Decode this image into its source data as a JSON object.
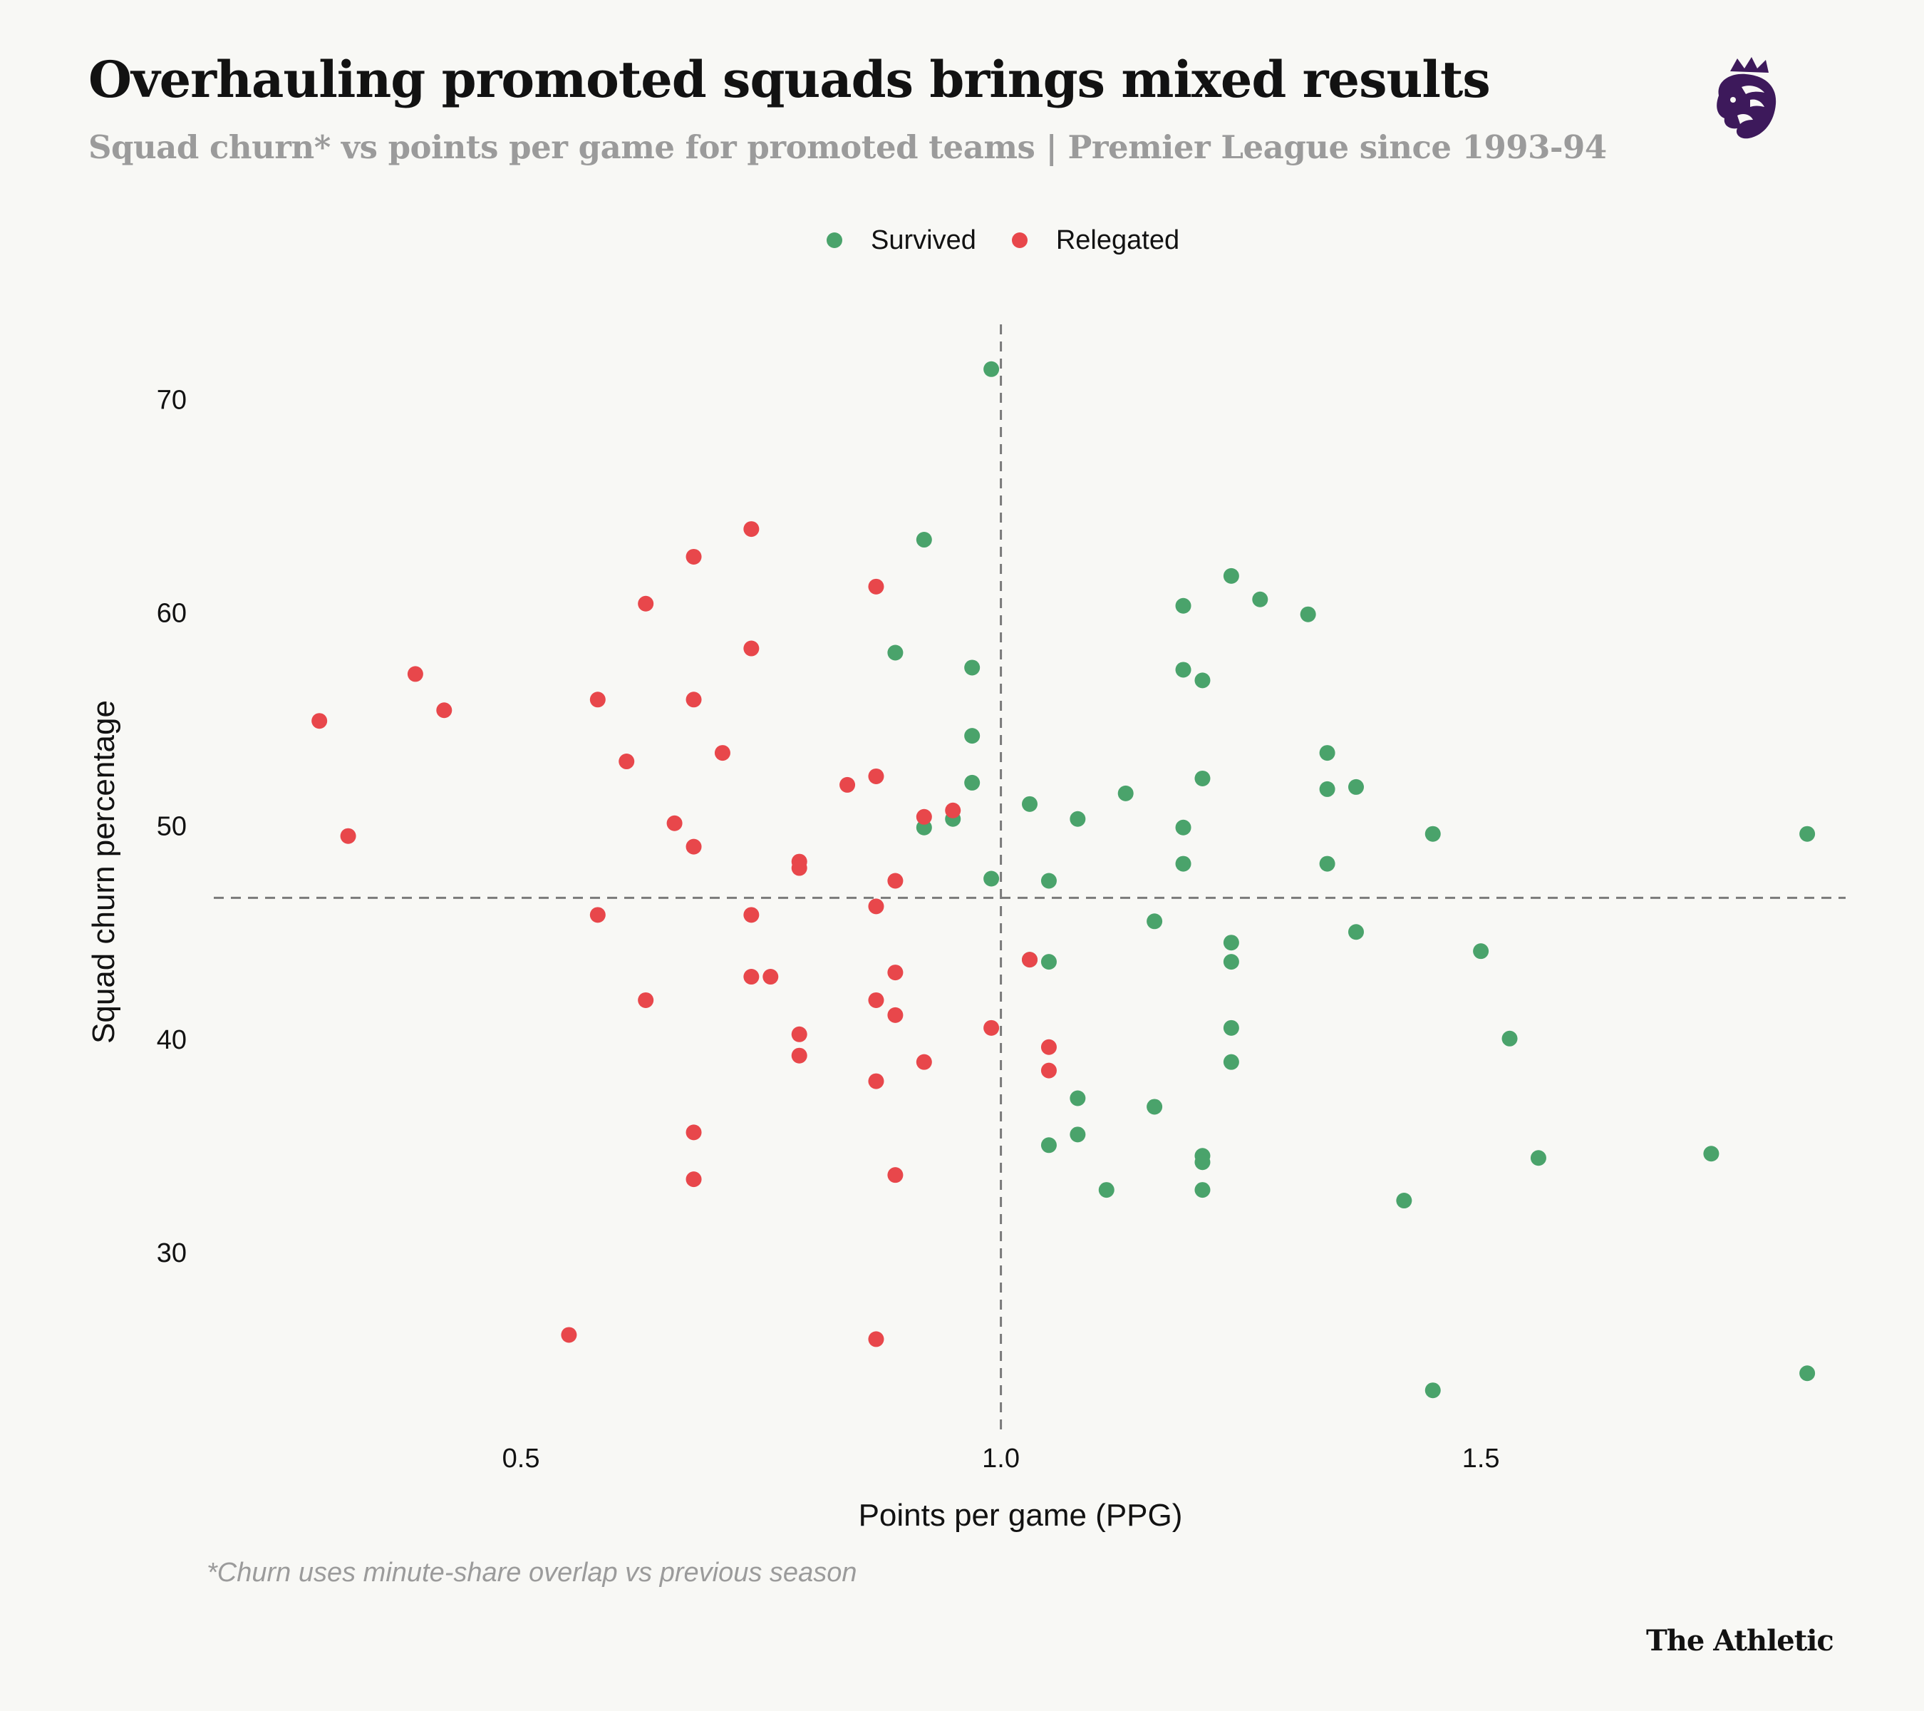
{
  "header": {
    "title": "Overhauling promoted squads brings mixed results",
    "subtitle": "Squad churn* vs points per game for promoted teams | Premier League since 1993-94"
  },
  "logo": {
    "icon": "premier-league-lion-icon",
    "color": "#3d195b"
  },
  "footnote": "*Churn uses minute-share overlap vs previous season",
  "brand": "The Athletic",
  "colors": {
    "survived": "#4aa36b",
    "relegated": "#e8474b",
    "reference": "#7a7a7a"
  },
  "chart_data": {
    "type": "scatter",
    "title": "Overhauling promoted squads brings mixed results",
    "xlabel": "Points per game (PPG)",
    "ylabel": "Squad churn percentage",
    "xlim": [
      0.18,
      1.88
    ],
    "ylim": [
      21.5,
      73.5
    ],
    "xticks": [
      0.5,
      1.0,
      1.5
    ],
    "xtick_labels": [
      "0.5",
      "1.0",
      "1.5"
    ],
    "yticks": [
      30,
      40,
      50,
      60,
      70
    ],
    "ytick_labels": [
      "30",
      "40",
      "50",
      "60",
      "70"
    ],
    "grid": false,
    "legend_position": "top-center",
    "reference_lines": {
      "x": 1.0,
      "y": 46.6
    },
    "series": [
      {
        "name": "Survived",
        "points": [
          [
            0.99,
            71.4
          ],
          [
            0.92,
            63.4
          ],
          [
            1.24,
            61.7
          ],
          [
            1.19,
            60.3
          ],
          [
            1.27,
            60.6
          ],
          [
            1.32,
            59.9
          ],
          [
            0.89,
            58.1
          ],
          [
            0.97,
            57.4
          ],
          [
            1.19,
            57.3
          ],
          [
            1.21,
            56.8
          ],
          [
            0.97,
            54.2
          ],
          [
            1.34,
            53.4
          ],
          [
            0.97,
            52.0
          ],
          [
            1.21,
            52.2
          ],
          [
            1.34,
            51.7
          ],
          [
            1.37,
            51.8
          ],
          [
            1.13,
            51.5
          ],
          [
            1.03,
            51.0
          ],
          [
            1.08,
            50.3
          ],
          [
            0.95,
            50.3
          ],
          [
            0.92,
            49.9
          ],
          [
            1.19,
            49.9
          ],
          [
            1.45,
            49.6
          ],
          [
            1.84,
            49.6
          ],
          [
            1.19,
            48.2
          ],
          [
            1.34,
            48.2
          ],
          [
            0.99,
            47.5
          ],
          [
            1.05,
            47.4
          ],
          [
            1.16,
            45.5
          ],
          [
            1.37,
            45.0
          ],
          [
            1.24,
            44.5
          ],
          [
            1.5,
            44.1
          ],
          [
            1.03,
            43.7
          ],
          [
            1.05,
            43.6
          ],
          [
            1.24,
            43.6
          ],
          [
            1.24,
            40.5
          ],
          [
            1.53,
            40.0
          ],
          [
            1.24,
            38.9
          ],
          [
            1.08,
            37.2
          ],
          [
            1.16,
            36.8
          ],
          [
            1.08,
            35.5
          ],
          [
            1.05,
            35.0
          ],
          [
            1.21,
            34.5
          ],
          [
            1.21,
            34.2
          ],
          [
            1.56,
            34.4
          ],
          [
            1.74,
            34.6
          ],
          [
            1.11,
            32.9
          ],
          [
            1.21,
            32.9
          ],
          [
            1.42,
            32.4
          ],
          [
            1.84,
            24.3
          ],
          [
            1.45,
            23.5
          ]
        ]
      },
      {
        "name": "Relegated",
        "points": [
          [
            0.74,
            63.9
          ],
          [
            0.68,
            62.6
          ],
          [
            0.87,
            61.2
          ],
          [
            0.63,
            60.4
          ],
          [
            0.74,
            58.3
          ],
          [
            0.39,
            57.1
          ],
          [
            0.58,
            55.9
          ],
          [
            0.68,
            55.9
          ],
          [
            0.42,
            55.4
          ],
          [
            0.29,
            54.9
          ],
          [
            0.71,
            53.4
          ],
          [
            0.61,
            53.0
          ],
          [
            0.87,
            52.3
          ],
          [
            0.84,
            51.9
          ],
          [
            0.95,
            50.7
          ],
          [
            0.92,
            50.4
          ],
          [
            0.66,
            50.1
          ],
          [
            0.32,
            49.5
          ],
          [
            0.68,
            49.0
          ],
          [
            0.79,
            48.3
          ],
          [
            0.79,
            48.0
          ],
          [
            0.89,
            47.4
          ],
          [
            0.87,
            46.2
          ],
          [
            0.58,
            45.8
          ],
          [
            0.74,
            45.8
          ],
          [
            0.74,
            42.9
          ],
          [
            0.76,
            42.9
          ],
          [
            0.89,
            43.1
          ],
          [
            1.03,
            43.7
          ],
          [
            0.63,
            41.8
          ],
          [
            0.87,
            41.8
          ],
          [
            0.89,
            41.1
          ],
          [
            0.79,
            40.2
          ],
          [
            0.99,
            40.5
          ],
          [
            1.05,
            39.6
          ],
          [
            0.79,
            39.2
          ],
          [
            0.92,
            38.9
          ],
          [
            1.05,
            38.5
          ],
          [
            0.87,
            38.0
          ],
          [
            0.68,
            35.6
          ],
          [
            0.89,
            33.6
          ],
          [
            0.68,
            33.4
          ],
          [
            0.55,
            26.1
          ],
          [
            0.87,
            25.9
          ]
        ]
      }
    ]
  }
}
